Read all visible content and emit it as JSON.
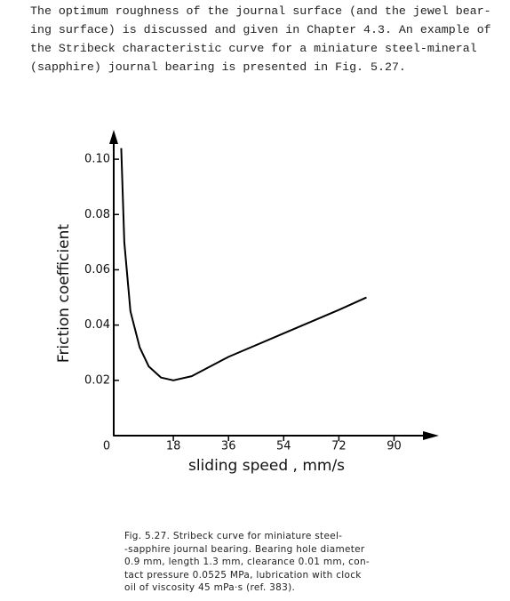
{
  "paragraph_lines": [
    "The optimum roughness of the journal surface (and the jewel bear-",
    "ing surface) is discussed and given in Chapter 4.3. An example of",
    "the Stribeck characteristic curve for a miniature steel-mineral",
    "(sapphire) journal bearing is presented in Fig. 5.27."
  ],
  "chart_data": {
    "type": "line",
    "x_label": "sliding speed , mm/s",
    "y_label": "Friction coefficient",
    "x": [
      1,
      2,
      4,
      7,
      10,
      14,
      18,
      24,
      36,
      54,
      72,
      81
    ],
    "y": [
      0.104,
      0.07,
      0.045,
      0.032,
      0.025,
      0.021,
      0.02,
      0.0215,
      0.0285,
      0.037,
      0.0455,
      0.05
    ],
    "color": "#000000",
    "xlim": [
      0,
      102
    ],
    "xticks": [
      0,
      18,
      36,
      54,
      72,
      90
    ],
    "ylim": [
      0,
      0.11
    ],
    "yticks": [
      0.02,
      0.04,
      0.06,
      0.08,
      {
        "value": 0.1,
        "label": "0.10"
      }
    ]
  },
  "caption_lines": [
    "Fig. 5.27. Stribeck curve for miniature steel-",
    "-sapphire journal bearing. Bearing hole diameter",
    "0.9 mm, length 1.3 mm, clearance 0.01 mm, con-",
    "tact pressure 0.0525 MPa, lubrication with clock",
    "oil of viscosity 45 mPa·s (ref. 383)."
  ]
}
